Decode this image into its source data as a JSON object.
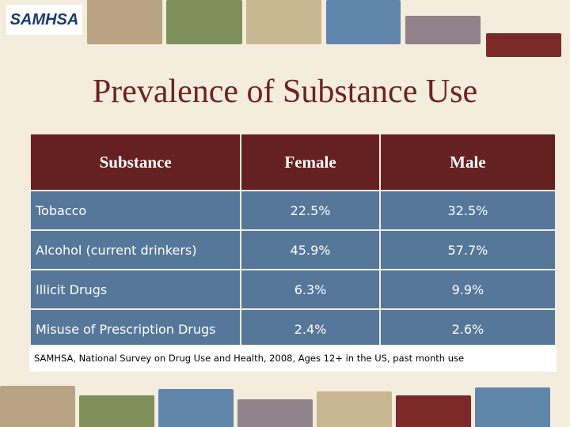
{
  "header": {
    "logo": "SAMHSA",
    "title": "Prevalence of Substance Use"
  },
  "table": {
    "columns": [
      "Substance",
      "Female",
      "Male"
    ],
    "rows": [
      [
        "Tobacco",
        "22.5%",
        "32.5%"
      ],
      [
        "Alcohol (current drinkers)",
        "45.9%",
        "57.7%"
      ],
      [
        "Illicit Drugs",
        "6.3%",
        "9.9%"
      ],
      [
        "Misuse of Prescription Drugs",
        "2.4%",
        "2.6%"
      ]
    ]
  },
  "footer": {
    "source": "SAMHSA, National Survey on Drug Use and Health, 2008, Ages 12+ in the US, past month use"
  }
}
